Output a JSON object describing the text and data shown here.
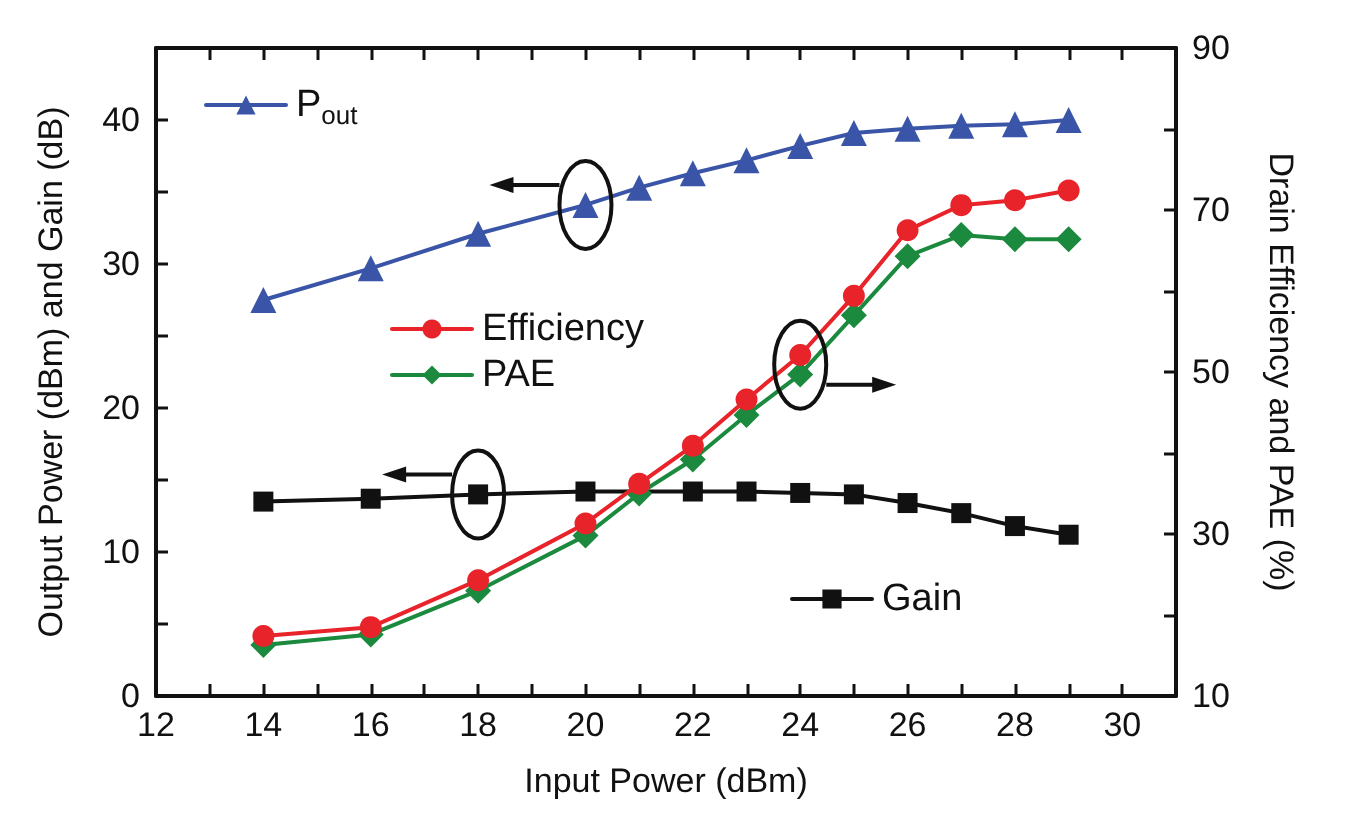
{
  "chart_data": {
    "type": "line",
    "xlabel": "Input Power (dBm)",
    "ylabel": "Output Power (dBm) and Gain (dB)",
    "y2label": "Drain Efficiency and PAE (%)",
    "xlim": [
      12,
      31
    ],
    "xticks": [
      12,
      14,
      16,
      18,
      20,
      22,
      24,
      26,
      28,
      30
    ],
    "ylim": [
      0,
      45
    ],
    "yticks": [
      0,
      10,
      20,
      30,
      40
    ],
    "y2lim": [
      10,
      90
    ],
    "y2ticks": [
      10,
      30,
      50,
      70,
      90
    ],
    "grid": false,
    "legend": "top left",
    "line_style": "solid",
    "series": [
      {
        "name": "P$_{out}$",
        "color": "#3a55a8",
        "marker": "triangle",
        "x": [
          14,
          16,
          18,
          20,
          21,
          22,
          23,
          24,
          25,
          26,
          27,
          28,
          29
        ],
        "values": [
          27.5,
          29.7,
          32.1,
          34.1,
          35.3,
          36.3,
          37.2,
          38.2,
          39.1,
          39.4,
          39.6,
          39.7,
          40.0
        ]
      },
      {
        "name": "Efficiency",
        "color": "#e8232a",
        "marker": "circle",
        "axis": "y2",
        "x": [
          14,
          16,
          18,
          20,
          21,
          22,
          23,
          24,
          25,
          26,
          27,
          28,
          29
        ],
        "values": [
          17.4,
          18.5,
          24.3,
          31.3,
          36.2,
          40.9,
          46.6,
          52.1,
          59.4,
          67.5,
          70.6,
          71.2,
          72.4
        ]
      },
      {
        "name": "PAE",
        "color": "#1b8a3e",
        "marker": "diamond",
        "axis": "y2",
        "x": [
          14,
          16,
          18,
          20,
          21,
          22,
          23,
          24,
          25,
          26,
          27,
          28,
          29
        ],
        "values": [
          16.3,
          17.6,
          23.0,
          29.8,
          35.0,
          39.2,
          44.7,
          49.7,
          57.0,
          64.3,
          66.9,
          66.4,
          66.4
        ]
      },
      {
        "name": "Gain",
        "color": "#111111",
        "marker": "square",
        "x": [
          14,
          16,
          18,
          20,
          22,
          23,
          24,
          25,
          26,
          27,
          28,
          29
        ],
        "values": [
          13.5,
          13.7,
          14.0,
          14.2,
          14.2,
          14.2,
          14.1,
          14.0,
          13.4,
          12.7,
          11.8,
          11.2
        ]
      }
    ]
  }
}
